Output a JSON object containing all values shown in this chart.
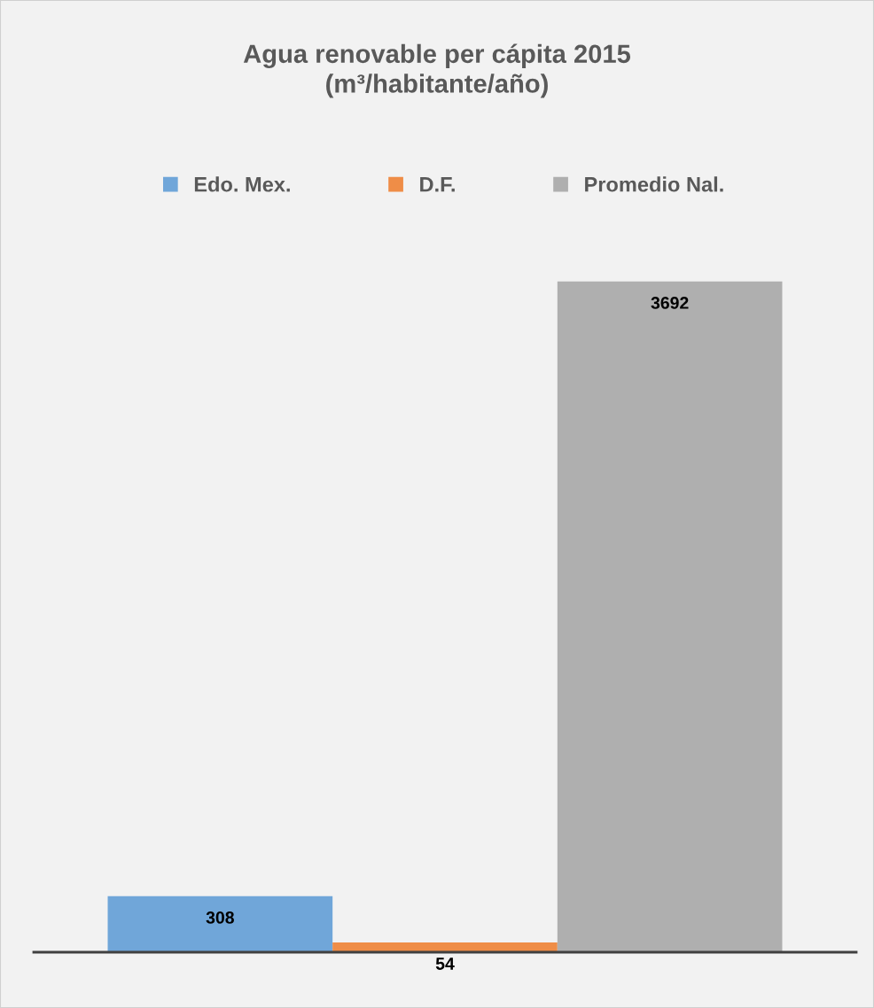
{
  "chart_data": {
    "type": "bar",
    "title": "Agua renovable per cápita 2015\n(m³/habitante/año)",
    "categories": [
      null
    ],
    "series": [
      {
        "name": "Edo. Mex.",
        "color": "#70a6d9",
        "values": [
          308
        ]
      },
      {
        "name": "D.F.",
        "color": "#ef8d47",
        "values": [
          54
        ]
      },
      {
        "name": "Promedio Nal.",
        "color": "#afafaf",
        "values": [
          3692
        ]
      }
    ],
    "data_labels": true,
    "legend": "top",
    "grid": false
  }
}
